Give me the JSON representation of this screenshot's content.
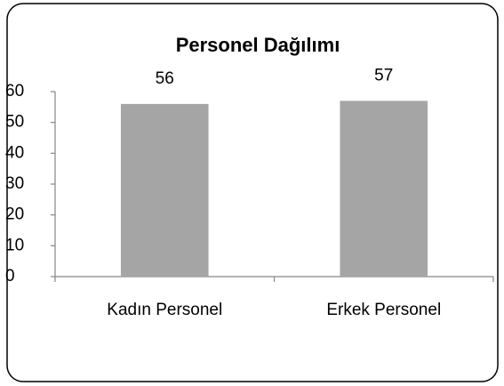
{
  "chart_data": {
    "type": "bar",
    "title": "Personel Dağılımı",
    "categories": [
      "Kadın Personel",
      "Erkek Personel"
    ],
    "values": [
      56,
      57
    ],
    "color": "#a5a5a5",
    "ylim": [
      0,
      60
    ],
    "yticks": [
      0,
      10,
      20,
      30,
      40,
      50,
      60
    ],
    "grid": false
  }
}
